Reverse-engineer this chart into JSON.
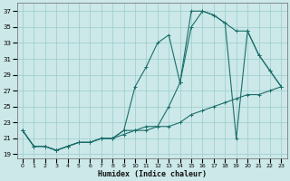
{
  "xlabel": "Humidex (Indice chaleur)",
  "bg_color": "#cce8e8",
  "grid_color": "#99cccc",
  "line_color": "#1a6e6a",
  "xlim": [
    -0.5,
    23.5
  ],
  "ylim": [
    18.5,
    38
  ],
  "xticks": [
    0,
    1,
    2,
    3,
    4,
    5,
    6,
    7,
    8,
    9,
    10,
    11,
    12,
    13,
    14,
    15,
    16,
    17,
    18,
    19,
    20,
    21,
    22,
    23
  ],
  "yticks": [
    19,
    21,
    23,
    25,
    27,
    29,
    31,
    33,
    35,
    37
  ],
  "line1_y": [
    22,
    20,
    20,
    19.5,
    20,
    20.5,
    20.5,
    21,
    21,
    21.5,
    22,
    22,
    22.5,
    22.5,
    23,
    24,
    24.5,
    25,
    25.5,
    26,
    26.5,
    26.5,
    27,
    27.5
  ],
  "line2_y": [
    22,
    20,
    20,
    19.5,
    20,
    20.5,
    20.5,
    21,
    21,
    22,
    27.5,
    30,
    33,
    34,
    28,
    37,
    37,
    36.5,
    35.5,
    34.5,
    34.5,
    31.5,
    29.5,
    27.5
  ],
  "line3_y": [
    22,
    20,
    20,
    19.5,
    20,
    20.5,
    20.5,
    21,
    21,
    22,
    22,
    22.5,
    22.5,
    25,
    28,
    35,
    37,
    36.5,
    35.5,
    21,
    34.5,
    31.5,
    29.5,
    27.5
  ]
}
